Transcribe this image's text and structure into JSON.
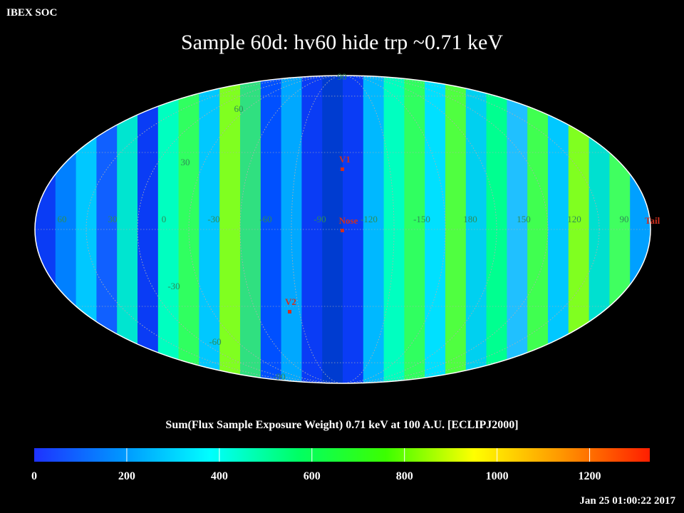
{
  "header": {
    "org_label": "IBEX SOC",
    "title": "Sample 60d: hv60 hide trp ~0.71 keV"
  },
  "map": {
    "projection": "Mollweide (ecliptic J2000)",
    "background": "#000000",
    "outline_color": "#ffffff",
    "grid_color": "#b0b0b0",
    "grid_label_color": "#2e8b57",
    "marker_color": "#d03020",
    "longitude_labels": [
      "60",
      "30",
      "0",
      "-30",
      "-60",
      "-90",
      "-120",
      "-150",
      "180",
      "150",
      "120",
      "90"
    ],
    "latitude_labels": [
      "90",
      "60",
      "30",
      "-30",
      "-60",
      "-90"
    ],
    "markers": [
      {
        "label": "V1"
      },
      {
        "label": "Nose"
      },
      {
        "label": "V2"
      },
      {
        "label": "Tail"
      }
    ],
    "band_colors": [
      "#0a3cf5",
      "#0080ff",
      "#00c8ff",
      "#1060ff",
      "#00e5d0",
      "#0a3cf5",
      "#00ffc0",
      "#30ff60",
      "#00c8ff",
      "#80ff20",
      "#30e080",
      "#0050ff",
      "#00a8ff",
      "#0a3cf5",
      "#003cd0",
      "#0a3cf5",
      "#00b8ff",
      "#00ffc0",
      "#30ff60",
      "#00e0ff",
      "#50ff40",
      "#00d0f0",
      "#00ff90",
      "#20c0ff",
      "#40ff50",
      "#00c8ff",
      "#80ff20",
      "#00e0d0",
      "#40ff60",
      "#00a0ff"
    ]
  },
  "colorbar": {
    "title": "Sum(Flux Sample Exposure Weight)  0.71 keV at 100 A.U. [ECLIPJ2000]",
    "ticks": [
      "0",
      "200",
      "400",
      "600",
      "800",
      "1000",
      "1200"
    ],
    "range": [
      0,
      1330
    ],
    "colors": [
      "#1e32ff",
      "#0096ff",
      "#00ffff",
      "#00ff64",
      "#3cff00",
      "#ffff00",
      "#ff9600",
      "#ff1e00"
    ]
  },
  "footer": {
    "timestamp": "Jan 25 01:00:22 2017"
  }
}
